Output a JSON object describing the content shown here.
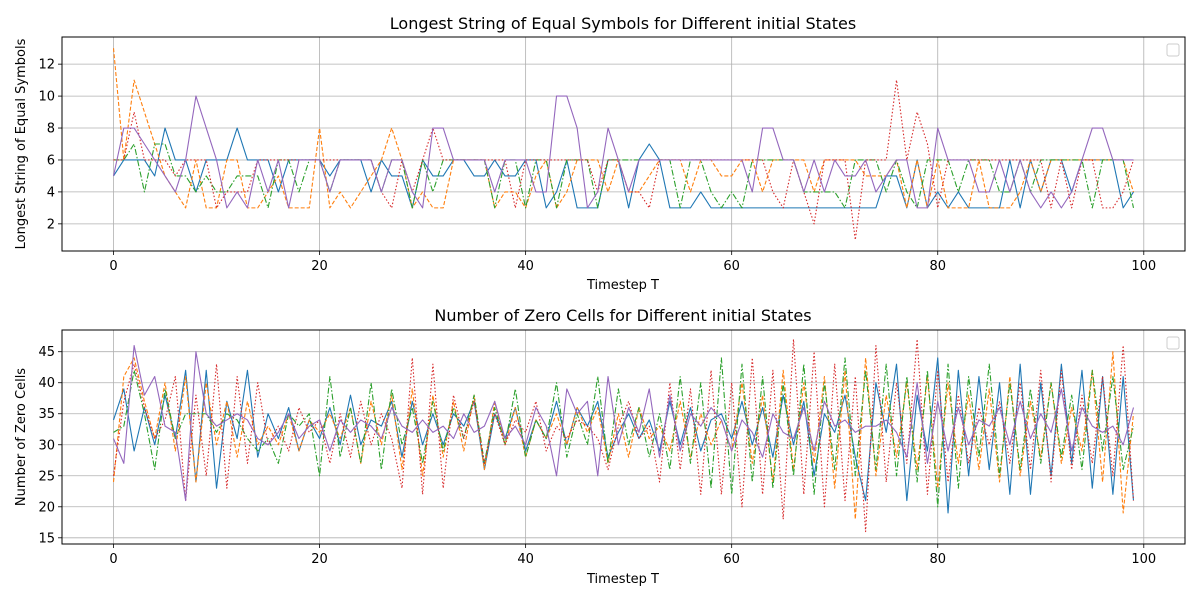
{
  "chart_data": [
    {
      "type": "line",
      "title": "Longest String of Equal Symbols for Different initial States",
      "xlabel": "Timestep T",
      "ylabel": "Longest String of Equal Symbols",
      "xlim": [
        -5,
        104
      ],
      "ylim": [
        0.3,
        13.7
      ],
      "xticks": [
        "0",
        "20",
        "40",
        "60",
        "80",
        "100"
      ],
      "yticks": [
        "2",
        "4",
        "6",
        "8",
        "10",
        "12"
      ],
      "grid": true,
      "legend": "top-right (empty)",
      "series": [
        {
          "color": "#1f77b4",
          "dash": "solid",
          "values": [
            5,
            6,
            6,
            6,
            5,
            8,
            6,
            6,
            4,
            6,
            6,
            6,
            8,
            6,
            6,
            6,
            4,
            6,
            6,
            6,
            6,
            5,
            6,
            6,
            6,
            4,
            6,
            5,
            5,
            3,
            6,
            5,
            5,
            6,
            6,
            5,
            5,
            6,
            5,
            5,
            6,
            6,
            3,
            4,
            6,
            3,
            3,
            3,
            6,
            6,
            3,
            6,
            7,
            6,
            3,
            3,
            3,
            4,
            3,
            3,
            3,
            3,
            3,
            3,
            3,
            3,
            3,
            3,
            3,
            3,
            3,
            3,
            3,
            3,
            3,
            5,
            5,
            3,
            6,
            3,
            4,
            3,
            4,
            3,
            3,
            3,
            3,
            6,
            3,
            6,
            4,
            6,
            6,
            4,
            6,
            6,
            6,
            6,
            3,
            4
          ]
        },
        {
          "color": "#ff7f0e",
          "dash": "dashed",
          "values": [
            13,
            6,
            11,
            9,
            7,
            5,
            4,
            3,
            6,
            3,
            3,
            6,
            6,
            3,
            3,
            4,
            5,
            3,
            3,
            3,
            8,
            3,
            4,
            3,
            4,
            5,
            6,
            8,
            6,
            3,
            4,
            3,
            3,
            6,
            6,
            6,
            6,
            3,
            4,
            4,
            3,
            5,
            6,
            3,
            4,
            6,
            6,
            6,
            4,
            6,
            4,
            4,
            5,
            6,
            6,
            6,
            4,
            6,
            6,
            5,
            5,
            6,
            6,
            4,
            6,
            6,
            6,
            6,
            4,
            6,
            6,
            6,
            6,
            5,
            5,
            5,
            6,
            3,
            6,
            3,
            6,
            3,
            3,
            3,
            6,
            3,
            3,
            3,
            4,
            6,
            4,
            6,
            6,
            6,
            6,
            6,
            6,
            6,
            6,
            4
          ]
        },
        {
          "color": "#2ca02c",
          "dash": "dashdot",
          "values": [
            6,
            6,
            7,
            4,
            7,
            7,
            5,
            5,
            4,
            5,
            4,
            4,
            5,
            5,
            5,
            3,
            6,
            6,
            4,
            6,
            6,
            4,
            6,
            6,
            6,
            6,
            4,
            6,
            6,
            3,
            6,
            4,
            6,
            6,
            6,
            6,
            6,
            3,
            6,
            6,
            3,
            6,
            6,
            3,
            6,
            6,
            6,
            3,
            6,
            6,
            6,
            6,
            6,
            6,
            6,
            3,
            6,
            6,
            4,
            3,
            4,
            3,
            6,
            6,
            6,
            6,
            6,
            4,
            4,
            4,
            4,
            3,
            6,
            6,
            6,
            4,
            6,
            4,
            3,
            6,
            6,
            6,
            4,
            6,
            6,
            6,
            4,
            4,
            6,
            4,
            6,
            6,
            6,
            6,
            6,
            3,
            6,
            6,
            6,
            3
          ]
        },
        {
          "color": "#d62728",
          "dash": "dotted",
          "values": [
            6,
            6,
            9,
            6,
            6,
            6,
            5,
            6,
            6,
            6,
            3,
            4,
            4,
            4,
            6,
            6,
            6,
            6,
            6,
            6,
            6,
            6,
            6,
            6,
            6,
            6,
            4,
            3,
            6,
            4,
            6,
            8,
            6,
            6,
            6,
            6,
            6,
            6,
            6,
            3,
            6,
            6,
            6,
            6,
            6,
            6,
            6,
            4,
            6,
            6,
            4,
            4,
            3,
            6,
            6,
            6,
            6,
            6,
            6,
            6,
            6,
            6,
            6,
            6,
            4,
            3,
            6,
            4,
            2,
            6,
            6,
            6,
            1,
            6,
            6,
            6,
            11,
            6,
            9,
            7,
            3,
            6,
            6,
            6,
            6,
            6,
            6,
            6,
            6,
            6,
            6,
            3,
            6,
            3,
            6,
            6,
            3,
            3,
            4,
            6
          ]
        },
        {
          "color": "#9467bd",
          "dash": "solid",
          "values": [
            5,
            8,
            8,
            7,
            6,
            5,
            4,
            6,
            10,
            8,
            6,
            3,
            4,
            3,
            6,
            4,
            6,
            3,
            6,
            6,
            6,
            4,
            6,
            6,
            6,
            6,
            4,
            6,
            6,
            4,
            3,
            8,
            8,
            6,
            6,
            6,
            6,
            4,
            6,
            6,
            6,
            4,
            4,
            10,
            10,
            8,
            3,
            4,
            8,
            6,
            4,
            6,
            6,
            6,
            6,
            6,
            6,
            6,
            6,
            6,
            6,
            6,
            4,
            8,
            8,
            6,
            6,
            4,
            6,
            4,
            6,
            5,
            5,
            6,
            4,
            5,
            6,
            6,
            3,
            3,
            8,
            6,
            6,
            6,
            4,
            4,
            6,
            4,
            6,
            4,
            3,
            4,
            3,
            4,
            6,
            8,
            8,
            6,
            6,
            6
          ]
        }
      ]
    },
    {
      "type": "line",
      "title": "Number of Zero Cells for Different initial States",
      "xlabel": "Timestep T",
      "ylabel": "Number of Zero Cells",
      "xlim": [
        -5,
        104
      ],
      "ylim": [
        14,
        48.5
      ],
      "xticks": [
        "0",
        "20",
        "40",
        "60",
        "80",
        "100"
      ],
      "yticks": [
        "15",
        "20",
        "25",
        "30",
        "35",
        "40",
        "45"
      ],
      "grid": true,
      "legend": "top-right (empty)",
      "series": [
        {
          "color": "#1f77b4",
          "dash": "solid",
          "values": [
            34,
            39,
            29,
            36,
            30,
            38,
            31,
            42,
            24,
            42,
            23,
            37,
            31,
            42,
            28,
            35,
            31,
            36,
            29,
            34,
            31,
            36,
            30,
            38,
            30,
            34,
            33,
            37,
            28,
            37,
            30,
            35,
            30,
            35,
            33,
            37,
            26,
            35,
            31,
            36,
            29,
            34,
            31,
            37,
            30,
            36,
            33,
            37,
            28,
            32,
            35,
            31,
            34,
            29,
            37,
            30,
            36,
            29,
            34,
            35,
            31,
            37,
            30,
            36,
            28,
            38,
            30,
            37,
            25,
            35,
            32,
            38,
            28,
            21,
            40,
            32,
            43,
            21,
            38,
            29,
            44,
            19,
            42,
            25,
            41,
            26,
            40,
            22,
            43,
            22,
            40,
            25,
            43,
            27,
            42,
            23,
            41,
            22,
            41,
            21
          ]
        },
        {
          "color": "#ff7f0e",
          "dash": "dashed",
          "values": [
            24,
            41,
            44,
            37,
            31,
            40,
            29,
            41,
            24,
            40,
            30,
            37,
            28,
            37,
            30,
            33,
            30,
            35,
            29,
            34,
            32,
            35,
            31,
            36,
            27,
            37,
            30,
            38,
            26,
            39,
            25,
            38,
            28,
            37,
            29,
            38,
            26,
            37,
            30,
            36,
            28,
            34,
            31,
            35,
            30,
            36,
            32,
            36,
            27,
            35,
            28,
            36,
            31,
            33,
            29,
            37,
            28,
            35,
            30,
            34,
            29,
            40,
            27,
            38,
            24,
            42,
            26,
            40,
            27,
            41,
            23,
            42,
            18,
            44,
            25,
            38,
            28,
            40,
            26,
            41,
            23,
            40,
            27,
            38,
            26,
            39,
            24,
            41,
            25,
            37,
            28,
            40,
            27,
            36,
            29,
            42,
            24,
            45,
            19,
            35
          ]
        },
        {
          "color": "#2ca02c",
          "dash": "dashdot",
          "values": [
            32,
            33,
            42,
            35,
            26,
            39,
            31,
            35,
            35,
            35,
            32,
            35,
            34,
            31,
            29,
            31,
            27,
            35,
            33,
            35,
            25,
            41,
            28,
            36,
            27,
            40,
            26,
            39,
            30,
            36,
            27,
            37,
            29,
            36,
            31,
            38,
            27,
            36,
            30,
            39,
            28,
            34,
            31,
            40,
            28,
            35,
            30,
            41,
            27,
            39,
            30,
            36,
            28,
            35,
            26,
            41,
            27,
            40,
            23,
            44,
            22,
            43,
            24,
            41,
            23,
            40,
            25,
            43,
            22,
            40,
            26,
            44,
            25,
            42,
            26,
            43,
            25,
            41,
            24,
            42,
            20,
            43,
            23,
            41,
            28,
            43,
            25,
            40,
            26,
            39,
            27,
            40,
            28,
            38,
            26,
            42,
            29,
            41,
            26,
            33
          ]
        },
        {
          "color": "#d62728",
          "dash": "dotted",
          "values": [
            25,
            37,
            43,
            36,
            31,
            34,
            41,
            21,
            38,
            25,
            43,
            23,
            41,
            27,
            40,
            30,
            33,
            29,
            36,
            32,
            34,
            27,
            35,
            28,
            37,
            30,
            35,
            31,
            23,
            44,
            22,
            43,
            23,
            38,
            31,
            37,
            27,
            35,
            30,
            34,
            32,
            37,
            29,
            33,
            31,
            34,
            33,
            31,
            26,
            33,
            37,
            31,
            33,
            24,
            40,
            26,
            39,
            22,
            42,
            22,
            40,
            20,
            44,
            22,
            42,
            18,
            47,
            22,
            45,
            20,
            43,
            21,
            41,
            16,
            46,
            24,
            40,
            27,
            47,
            22,
            42,
            24,
            38,
            27,
            36,
            30,
            37,
            27,
            40,
            26,
            42,
            24,
            42,
            26,
            38,
            27,
            41,
            25,
            46,
            21
          ]
        },
        {
          "color": "#9467bd",
          "dash": "solid",
          "values": [
            31,
            27,
            46,
            38,
            41,
            33,
            32,
            21,
            45,
            35,
            33,
            34,
            35,
            34,
            31,
            30,
            32,
            35,
            31,
            33,
            34,
            29,
            34,
            32,
            34,
            33,
            31,
            36,
            33,
            32,
            34,
            32,
            33,
            31,
            35,
            32,
            33,
            37,
            31,
            33,
            30,
            36,
            33,
            25,
            39,
            35,
            37,
            25,
            41,
            30,
            36,
            32,
            39,
            28,
            38,
            29,
            35,
            33,
            36,
            34,
            29,
            34,
            32,
            28,
            35,
            32,
            31,
            36,
            29,
            37,
            33,
            34,
            32,
            33,
            33,
            34,
            32,
            28,
            40,
            27,
            37,
            29,
            36,
            30,
            34,
            33,
            36,
            30,
            37,
            31,
            35,
            32,
            39,
            29,
            36,
            33,
            32,
            33,
            30,
            36
          ]
        }
      ]
    }
  ]
}
